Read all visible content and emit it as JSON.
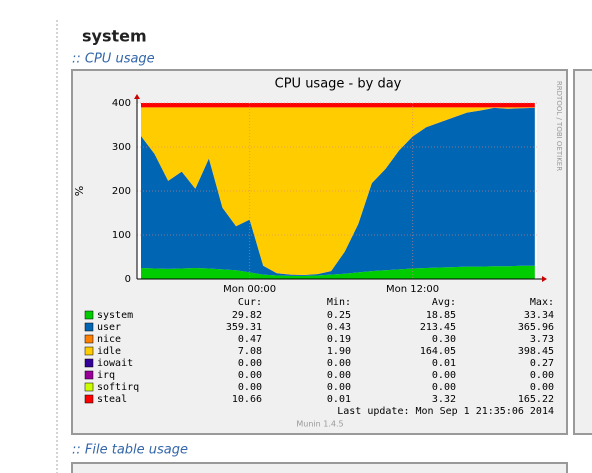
{
  "page": {
    "heading": "system",
    "section_1": ":: CPU usage",
    "section_2": ":: File table usage",
    "side_text": "RRDTOOL / TOBI OETIKER",
    "last_update": "Last update:  Mon Sep  1 21:35:06 2014",
    "footer": "Munin 1.4.5",
    "legend_headers": [
      "Cur:",
      "Min:",
      "Avg:",
      "Max:"
    ],
    "legend_rows": [
      [
        "29.82",
        "0.25",
        "18.85",
        "33.34"
      ],
      [
        "359.31",
        "0.43",
        "213.45",
        "365.96"
      ],
      [
        "0.47",
        "0.19",
        "0.30",
        "3.73"
      ],
      [
        "7.08",
        "1.90",
        "164.05",
        "398.45"
      ],
      [
        "0.00",
        "0.00",
        "0.01",
        "0.27"
      ],
      [
        "0.00",
        "0.00",
        "0.00",
        "0.00"
      ],
      [
        "0.00",
        "0.00",
        "0.00",
        "0.00"
      ],
      [
        "10.66",
        "0.01",
        "3.32",
        "165.22"
      ]
    ]
  },
  "chart_data": {
    "type": "stacked-area",
    "title": "CPU usage - by day",
    "ylabel": "%",
    "categories": [
      null,
      null,
      null,
      null,
      null,
      null,
      null,
      null,
      "Mon 00:00",
      null,
      null,
      null,
      null,
      null,
      null,
      null,
      null,
      null,
      null,
      null,
      "Mon 12:00",
      null,
      null,
      null,
      null,
      null,
      null,
      null,
      null,
      null
    ],
    "ylim": [
      0,
      400
    ],
    "yticks": [
      0,
      100,
      200,
      300,
      400
    ],
    "grid": true,
    "series": [
      {
        "name": "system",
        "color": "#00cc00",
        "values": [
          25,
          24,
          23,
          24,
          25,
          24,
          22,
          20,
          15,
          10,
          8,
          7,
          7,
          8,
          10,
          12,
          15,
          18,
          20,
          22,
          24,
          25,
          26,
          27,
          28,
          28,
          29,
          29,
          30,
          30
        ]
      },
      {
        "name": "user",
        "color": "#0066b3",
        "values": [
          300,
          260,
          200,
          220,
          180,
          250,
          140,
          100,
          120,
          20,
          5,
          3,
          2,
          3,
          8,
          50,
          110,
          200,
          230,
          270,
          300,
          320,
          330,
          340,
          350,
          355,
          360,
          358,
          358,
          359
        ]
      },
      {
        "name": "nice",
        "color": "#ff8000",
        "values": [
          0.5,
          0.5,
          0.5,
          0.5,
          0.5,
          0.5,
          0.5,
          0.5,
          0.5,
          0.5,
          0.5,
          0.5,
          0.5,
          0.5,
          0.5,
          0.5,
          0.5,
          0.5,
          0.5,
          0.5,
          0.5,
          0.5,
          0.5,
          0.5,
          0.5,
          0.5,
          0.5,
          0.5,
          0.5,
          0.5
        ]
      },
      {
        "name": "idle",
        "color": "#ffcc00",
        "values": [
          64.5,
          105.5,
          166.5,
          145.5,
          184.5,
          115.5,
          227.5,
          269.5,
          254.5,
          359.5,
          376.5,
          379.5,
          380.5,
          378.5,
          371.5,
          327.5,
          264.5,
          171.5,
          139.5,
          97.5,
          65.5,
          44.5,
          33.5,
          22.5,
          11.5,
          6.5,
          0.5,
          2.5,
          1.5,
          0.5
        ]
      },
      {
        "name": "iowait",
        "color": "#330099",
        "values": [
          0,
          0,
          0,
          0,
          0,
          0,
          0,
          0,
          0,
          0,
          0,
          0,
          0,
          0,
          0,
          0,
          0,
          0,
          0,
          0,
          0,
          0,
          0,
          0,
          0,
          0,
          0,
          0,
          0,
          0
        ]
      },
      {
        "name": "irq",
        "color": "#990099",
        "values": [
          0,
          0,
          0,
          0,
          0,
          0,
          0,
          0,
          0,
          0,
          0,
          0,
          0,
          0,
          0,
          0,
          0,
          0,
          0,
          0,
          0,
          0,
          0,
          0,
          0,
          0,
          0,
          0,
          0,
          0
        ]
      },
      {
        "name": "softirq",
        "color": "#ccff00",
        "values": [
          0,
          0,
          0,
          0,
          0,
          0,
          0,
          0,
          0,
          0,
          0,
          0,
          0,
          0,
          0,
          0,
          0,
          0,
          0,
          0,
          0,
          0,
          0,
          0,
          0,
          0,
          0,
          0,
          0,
          0
        ]
      },
      {
        "name": "steal",
        "color": "#ff0000",
        "values": [
          10,
          10,
          10,
          10,
          10,
          10,
          10,
          10,
          10,
          10,
          10,
          10,
          10,
          10,
          10,
          10,
          10,
          10,
          10,
          10,
          10,
          10,
          10,
          10,
          10,
          10,
          10,
          10,
          10,
          10
        ]
      }
    ]
  }
}
